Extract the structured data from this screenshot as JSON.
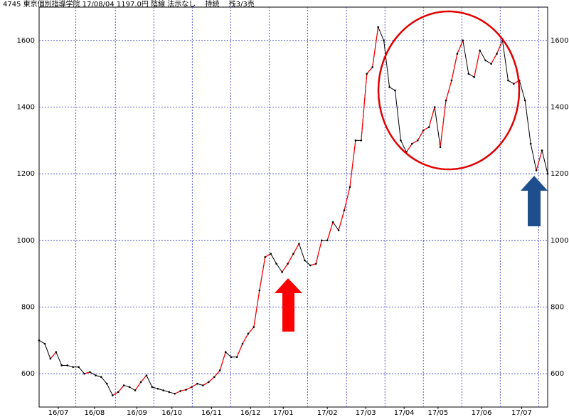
{
  "chart_data": {
    "type": "line",
    "title": "4745 東京個別指導学院 17/08/04 1197.0円 陰線 法示なし　 持続　 残3/3売",
    "x": [
      0,
      1,
      2,
      3,
      4,
      5,
      6,
      7,
      8,
      9,
      10,
      11,
      12,
      13,
      14,
      15,
      16,
      17,
      18,
      19,
      20,
      21,
      22,
      23,
      24,
      25,
      26,
      27,
      28,
      29,
      30,
      31,
      32,
      33,
      34,
      35,
      36,
      37,
      38,
      39,
      40,
      41,
      42,
      43,
      44,
      45,
      46,
      47,
      48,
      49,
      50,
      51,
      52,
      53,
      54,
      55,
      56,
      57,
      58,
      59,
      60,
      61,
      62,
      63,
      64,
      65,
      66,
      67,
      68,
      69,
      70,
      71,
      72,
      73,
      74,
      75,
      76,
      77,
      78,
      79,
      80,
      81,
      82,
      83,
      84,
      85,
      86,
      87,
      88,
      89,
      90
    ],
    "series": [
      {
        "color": "#000000",
        "rise_color": "#ff0000",
        "values": [
          700,
          690,
          645,
          665,
          625,
          625,
          620,
          620,
          600,
          605,
          595,
          590,
          570,
          535,
          545,
          565,
          560,
          550,
          575,
          595,
          560,
          555,
          550,
          545,
          540,
          548,
          552,
          560,
          570,
          565,
          575,
          590,
          610,
          665,
          650,
          650,
          690,
          720,
          740,
          850,
          950,
          960,
          930,
          905,
          930,
          960,
          990,
          940,
          925,
          930,
          1000,
          1000,
          1055,
          1030,
          1090,
          1160,
          1300,
          1300,
          1500,
          1520,
          1640,
          1600,
          1460,
          1450,
          1300,
          1265,
          1290,
          1300,
          1330,
          1340,
          1400,
          1280,
          1420,
          1480,
          1560,
          1600,
          1500,
          1490,
          1570,
          1540,
          1530,
          1560,
          1600,
          1480,
          1470,
          1480,
          1420,
          1290,
          1210,
          1270,
          1200
        ]
      }
    ],
    "xlim": [
      0,
      90
    ],
    "ylim": [
      500,
      1700
    ],
    "yticks": [
      600,
      800,
      1000,
      1200,
      1400,
      1600
    ],
    "xticks": [
      {
        "value": 3.4,
        "label": "16/07"
      },
      {
        "value": 9.8,
        "label": "16/08"
      },
      {
        "value": 17.3,
        "label": "16/09"
      },
      {
        "value": 23.5,
        "label": "16/10"
      },
      {
        "value": 30.5,
        "label": "16/11"
      },
      {
        "value": 37.4,
        "label": "16/12"
      },
      {
        "value": 43.2,
        "label": "17/01"
      },
      {
        "value": 51,
        "label": "17/02"
      },
      {
        "value": 57.8,
        "label": "17/03"
      },
      {
        "value": 64.6,
        "label": "17/04"
      },
      {
        "value": 70.6,
        "label": "17/05"
      },
      {
        "value": 78.3,
        "label": "17/06"
      },
      {
        "value": 85.4,
        "label": "17/07"
      }
    ],
    "xgrid": [
      6.5,
      13.5,
      20.3,
      27.1,
      33.9,
      40.7,
      47.5,
      54.4,
      61.2,
      68,
      74.8,
      81.6,
      88.4
    ],
    "grid": true
  }
}
